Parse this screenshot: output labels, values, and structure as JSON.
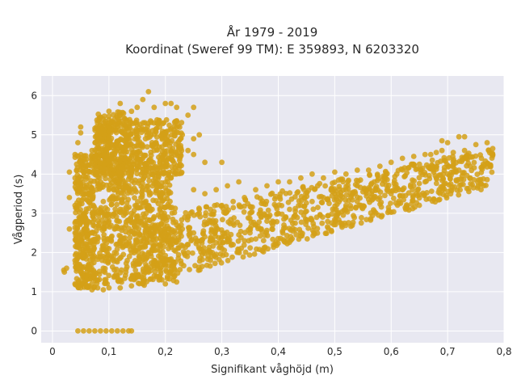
{
  "chart_data": {
    "type": "scatter",
    "title_line1": "År 1979 - 2019",
    "title_line2": "Koordinat (Sweref 99 TM): E 359893, N 6203320",
    "xlabel": "Signifikant våghöjd (m)",
    "ylabel": "Vågperiod (s)",
    "xlim": [
      -0.02,
      0.8
    ],
    "ylim": [
      -0.3,
      6.5
    ],
    "x_ticks": [
      0,
      0.1,
      0.2,
      0.3,
      0.4,
      0.5,
      0.6,
      0.7,
      0.8
    ],
    "x_tick_labels": [
      "0",
      "0,1",
      "0,2",
      "0,3",
      "0,4",
      "0,5",
      "0,6",
      "0,7",
      "0,8"
    ],
    "y_ticks": [
      0,
      1,
      2,
      3,
      4,
      5,
      6
    ],
    "y_tick_labels": [
      "0",
      "1",
      "2",
      "3",
      "4",
      "5",
      "6"
    ],
    "grid": true,
    "point_color": "#D4A017",
    "background_color": "#E8E8F1",
    "points": [
      [
        0.02,
        1.55
      ],
      [
        0.021,
        1.5
      ],
      [
        0.025,
        1.6
      ],
      [
        0.03,
        2.6
      ],
      [
        0.03,
        3.4
      ],
      [
        0.03,
        4.05
      ],
      [
        0.045,
        0.0
      ],
      [
        0.055,
        0.0
      ],
      [
        0.065,
        0.0
      ],
      [
        0.075,
        0.0
      ],
      [
        0.085,
        0.0
      ],
      [
        0.095,
        0.0
      ],
      [
        0.105,
        0.0
      ],
      [
        0.115,
        0.0
      ],
      [
        0.125,
        0.0
      ],
      [
        0.135,
        0.0
      ],
      [
        0.14,
        0.0
      ],
      [
        0.05,
        5.2
      ],
      [
        0.05,
        5.05
      ],
      [
        0.045,
        4.8
      ],
      [
        0.04,
        4.5
      ],
      [
        0.04,
        3.9
      ],
      [
        0.04,
        3.2
      ],
      [
        0.04,
        2.5
      ],
      [
        0.04,
        1.8
      ],
      [
        0.04,
        1.2
      ],
      [
        0.05,
        1.1
      ],
      [
        0.06,
        1.15
      ],
      [
        0.07,
        1.05
      ],
      [
        0.08,
        1.1
      ],
      [
        0.09,
        1.05
      ],
      [
        0.1,
        1.1
      ],
      [
        0.12,
        1.1
      ],
      [
        0.14,
        1.15
      ],
      [
        0.16,
        1.2
      ],
      [
        0.2,
        1.2
      ],
      [
        0.22,
        1.25
      ],
      [
        0.05,
        3.7
      ],
      [
        0.06,
        4.2
      ],
      [
        0.07,
        4.6
      ],
      [
        0.08,
        4.9
      ],
      [
        0.09,
        5.1
      ],
      [
        0.1,
        5.3
      ],
      [
        0.11,
        5.4
      ],
      [
        0.1,
        5.6
      ],
      [
        0.12,
        5.5
      ],
      [
        0.12,
        5.8
      ],
      [
        0.14,
        5.6
      ],
      [
        0.15,
        5.7
      ],
      [
        0.16,
        5.9
      ],
      [
        0.17,
        6.1
      ],
      [
        0.18,
        5.7
      ],
      [
        0.2,
        5.8
      ],
      [
        0.21,
        5.8
      ],
      [
        0.22,
        5.7
      ],
      [
        0.25,
        5.7
      ],
      [
        0.24,
        5.5
      ],
      [
        0.22,
        5.2
      ],
      [
        0.23,
        5.0
      ],
      [
        0.25,
        4.9
      ],
      [
        0.26,
        5.0
      ],
      [
        0.24,
        4.6
      ],
      [
        0.25,
        4.5
      ],
      [
        0.27,
        4.3
      ],
      [
        0.15,
        4.3
      ],
      [
        0.14,
        4.1
      ],
      [
        0.12,
        3.85
      ],
      [
        0.1,
        3.6
      ],
      [
        0.09,
        3.3
      ],
      [
        0.07,
        3.0
      ],
      [
        0.06,
        2.7
      ],
      [
        0.08,
        2.4
      ],
      [
        0.1,
        2.1
      ],
      [
        0.12,
        2.3
      ],
      [
        0.14,
        2.0
      ],
      [
        0.15,
        1.7
      ],
      [
        0.17,
        1.5
      ],
      [
        0.19,
        1.4
      ],
      [
        0.2,
        1.7
      ],
      [
        0.13,
        1.5
      ],
      [
        0.11,
        1.4
      ],
      [
        0.09,
        1.6
      ],
      [
        0.07,
        1.9
      ],
      [
        0.06,
        2.2
      ],
      [
        0.08,
        3.7
      ],
      [
        0.1,
        4.0
      ],
      [
        0.11,
        4.4
      ],
      [
        0.13,
        4.7
      ],
      [
        0.15,
        4.9
      ],
      [
        0.17,
        5.1
      ],
      [
        0.19,
        5.2
      ],
      [
        0.2,
        4.9
      ],
      [
        0.18,
        4.6
      ],
      [
        0.16,
        4.4
      ],
      [
        0.2,
        4.2
      ],
      [
        0.21,
        3.9
      ],
      [
        0.19,
        3.5
      ],
      [
        0.17,
        3.2
      ],
      [
        0.15,
        2.9
      ],
      [
        0.13,
        2.7
      ],
      [
        0.11,
        2.6
      ],
      [
        0.14,
        3.0
      ],
      [
        0.16,
        2.7
      ],
      [
        0.18,
        2.5
      ],
      [
        0.2,
        2.4
      ],
      [
        0.22,
        2.3
      ],
      [
        0.24,
        2.2
      ],
      [
        0.26,
        2.1
      ],
      [
        0.28,
        2.0
      ],
      [
        0.3,
        2.1
      ],
      [
        0.32,
        2.2
      ],
      [
        0.34,
        2.3
      ],
      [
        0.22,
        2.7
      ],
      [
        0.24,
        2.9
      ],
      [
        0.26,
        3.0
      ],
      [
        0.28,
        3.1
      ],
      [
        0.3,
        3.2
      ],
      [
        0.32,
        3.3
      ],
      [
        0.34,
        3.4
      ],
      [
        0.36,
        3.6
      ],
      [
        0.38,
        3.7
      ],
      [
        0.4,
        3.8
      ],
      [
        0.25,
        3.6
      ],
      [
        0.27,
        3.5
      ],
      [
        0.29,
        3.6
      ],
      [
        0.31,
        3.7
      ],
      [
        0.3,
        4.3
      ],
      [
        0.33,
        3.8
      ],
      [
        0.35,
        3.0
      ],
      [
        0.37,
        2.9
      ],
      [
        0.39,
        2.8
      ],
      [
        0.41,
        2.7
      ],
      [
        0.43,
        2.75
      ],
      [
        0.45,
        2.8
      ],
      [
        0.35,
        2.5
      ],
      [
        0.36,
        2.7
      ],
      [
        0.38,
        2.8
      ],
      [
        0.4,
        3.0
      ],
      [
        0.42,
        3.1
      ],
      [
        0.44,
        3.2
      ],
      [
        0.46,
        3.3
      ],
      [
        0.48,
        3.4
      ],
      [
        0.5,
        3.5
      ],
      [
        0.52,
        3.6
      ],
      [
        0.54,
        3.7
      ],
      [
        0.42,
        3.8
      ],
      [
        0.44,
        3.9
      ],
      [
        0.46,
        4.0
      ],
      [
        0.48,
        3.9
      ],
      [
        0.5,
        4.05
      ],
      [
        0.52,
        4.0
      ],
      [
        0.54,
        4.1
      ],
      [
        0.56,
        4.1
      ],
      [
        0.58,
        4.2
      ],
      [
        0.6,
        4.3
      ],
      [
        0.62,
        4.4
      ],
      [
        0.64,
        4.45
      ],
      [
        0.66,
        4.5
      ],
      [
        0.68,
        4.55
      ],
      [
        0.5,
        3.1
      ],
      [
        0.52,
        3.2
      ],
      [
        0.54,
        3.3
      ],
      [
        0.56,
        3.35
      ],
      [
        0.58,
        3.4
      ],
      [
        0.6,
        3.5
      ],
      [
        0.62,
        3.6
      ],
      [
        0.64,
        3.7
      ],
      [
        0.66,
        3.8
      ],
      [
        0.68,
        3.9
      ],
      [
        0.7,
        4.0
      ],
      [
        0.72,
        4.1
      ],
      [
        0.74,
        4.2
      ],
      [
        0.76,
        4.4
      ],
      [
        0.78,
        4.5
      ],
      [
        0.78,
        4.65
      ],
      [
        0.77,
        4.8
      ],
      [
        0.75,
        4.75
      ],
      [
        0.73,
        4.6
      ],
      [
        0.71,
        4.55
      ],
      [
        0.69,
        4.6
      ],
      [
        0.67,
        4.5
      ],
      [
        0.7,
        4.8
      ],
      [
        0.72,
        4.95
      ],
      [
        0.73,
        4.95
      ],
      [
        0.69,
        4.85
      ],
      [
        0.65,
        4.25
      ],
      [
        0.63,
        4.15
      ],
      [
        0.61,
        4.0
      ],
      [
        0.59,
        3.9
      ],
      [
        0.57,
        3.8
      ],
      [
        0.55,
        3.55
      ],
      [
        0.53,
        3.45
      ],
      [
        0.51,
        3.35
      ],
      [
        0.49,
        3.25
      ],
      [
        0.47,
        3.15
      ],
      [
        0.45,
        3.05
      ],
      [
        0.43,
        2.95
      ],
      [
        0.41,
        2.85
      ],
      [
        0.39,
        2.7
      ],
      [
        0.37,
        2.6
      ],
      [
        0.33,
        2.45
      ],
      [
        0.31,
        2.35
      ],
      [
        0.29,
        2.25
      ],
      [
        0.27,
        2.4
      ],
      [
        0.25,
        2.5
      ],
      [
        0.23,
        2.6
      ],
      [
        0.21,
        2.5
      ],
      [
        0.19,
        2.2
      ],
      [
        0.17,
        2.0
      ],
      [
        0.15,
        2.3
      ],
      [
        0.13,
        2.2
      ],
      [
        0.11,
        2.0
      ],
      [
        0.09,
        1.9
      ],
      [
        0.08,
        1.3
      ],
      [
        0.07,
        2.5
      ],
      [
        0.1,
        2.8
      ],
      [
        0.12,
        3.1
      ],
      [
        0.06,
        3.5
      ],
      [
        0.05,
        2.9
      ],
      [
        0.05,
        2.0
      ],
      [
        0.05,
        1.5
      ]
    ]
  }
}
